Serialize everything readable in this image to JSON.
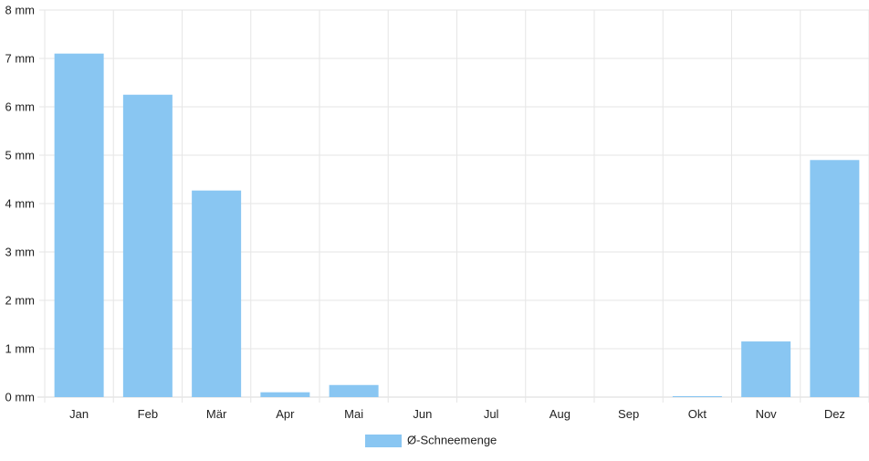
{
  "chart_data": {
    "type": "bar",
    "categories": [
      "Jan",
      "Feb",
      "Mär",
      "Apr",
      "Mai",
      "Jun",
      "Jul",
      "Aug",
      "Sep",
      "Okt",
      "Nov",
      "Dez"
    ],
    "series": [
      {
        "name": "Ø-Schneemenge",
        "values": [
          7.1,
          6.25,
          4.27,
          0.1,
          0.25,
          0,
          0,
          0,
          0,
          0.02,
          1.15,
          4.9
        ],
        "color": "#89c6f2"
      }
    ],
    "y_unit": "mm",
    "ylim": [
      0,
      8
    ],
    "yticks": [
      0,
      1,
      2,
      3,
      4,
      5,
      6,
      7,
      8
    ],
    "ytick_labels": [
      "0 mm",
      "1 mm",
      "2 mm",
      "3 mm",
      "4 mm",
      "5 mm",
      "6 mm",
      "7 mm",
      "8 mm"
    ],
    "grid": true,
    "legend_position": "bottom",
    "title": "",
    "xlabel": "",
    "ylabel": ""
  },
  "colors": {
    "bar": "#89c6f2",
    "grid": "#e6e6e6",
    "axis": "#d9d9d9"
  }
}
